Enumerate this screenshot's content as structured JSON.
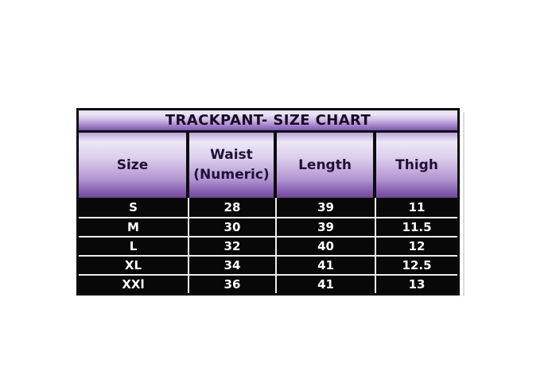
{
  "colors": {
    "page_bg": "#ffffff",
    "table_border": "#0d0d0d",
    "gradient_top": "#b9a3d8",
    "gradient_light": "#ede7f6",
    "gradient_dark": "#6f4795",
    "title_text": "#150b26",
    "header_text": "#221038",
    "data_row_bg": "#080808",
    "data_text": "#ffffff",
    "row_divider": "#ededed"
  },
  "chart_data": {
    "type": "table",
    "title": "TRACKPANT- SIZE CHART",
    "columns": [
      "Size",
      "Waist (Numeric)",
      "Length",
      "Thigh"
    ],
    "rows": [
      [
        "S",
        "28",
        "39",
        "11"
      ],
      [
        "M",
        "30",
        "39",
        "11.5"
      ],
      [
        "L",
        "32",
        "40",
        "12"
      ],
      [
        "XL",
        "34",
        "41",
        "12.5"
      ],
      [
        "XXl",
        "36",
        "41",
        "13"
      ]
    ]
  }
}
